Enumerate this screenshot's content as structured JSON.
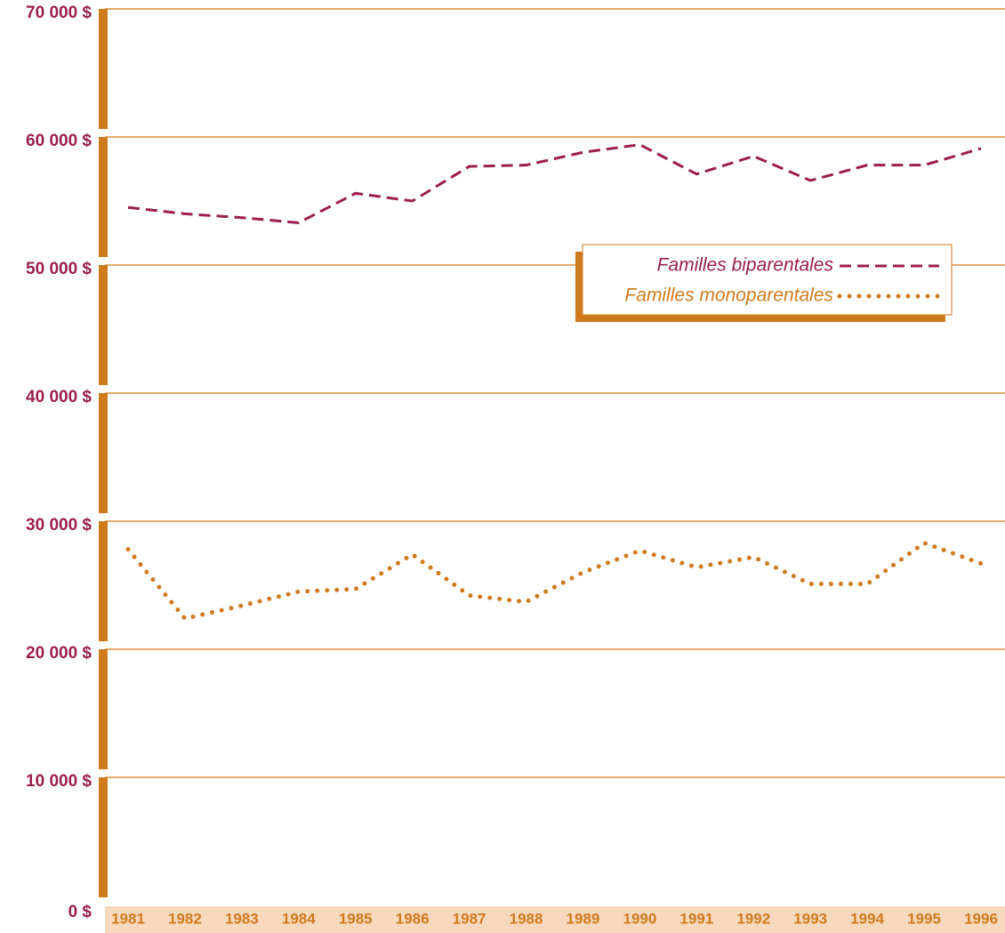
{
  "chart_data": {
    "type": "line",
    "categories": [
      "1981",
      "1982",
      "1983",
      "1984",
      "1985",
      "1986",
      "1987",
      "1988",
      "1989",
      "1990",
      "1991",
      "1992",
      "1993",
      "1994",
      "1995",
      "1996"
    ],
    "series": [
      {
        "name": "Familles biparentales",
        "color": "#9b1f4e",
        "values": [
          54500,
          54000,
          53700,
          53300,
          55600,
          55000,
          57700,
          57800,
          58800,
          59400,
          57100,
          58500,
          56600,
          57800,
          57800,
          59100
        ]
      },
      {
        "name": "Familles monoparentales",
        "color": "#d07a1e",
        "values": [
          27800,
          22400,
          23400,
          24500,
          24700,
          27400,
          24200,
          23700,
          26000,
          27700,
          26400,
          27200,
          25100,
          25100,
          28300,
          26700
        ]
      }
    ],
    "ylim": [
      0,
      70000
    ],
    "yticks": [
      {
        "value": 0,
        "label": "0 $"
      },
      {
        "value": 10000,
        "label": "10 000 $"
      },
      {
        "value": 20000,
        "label": "20 000 $"
      },
      {
        "value": 30000,
        "label": "30 000 $"
      },
      {
        "value": 40000,
        "label": "40 000 $"
      },
      {
        "value": 50000,
        "label": "50 000 $"
      },
      {
        "value": 60000,
        "label": "60 000 $"
      },
      {
        "value": 70000,
        "label": "70 000 $"
      }
    ],
    "grid": true
  }
}
